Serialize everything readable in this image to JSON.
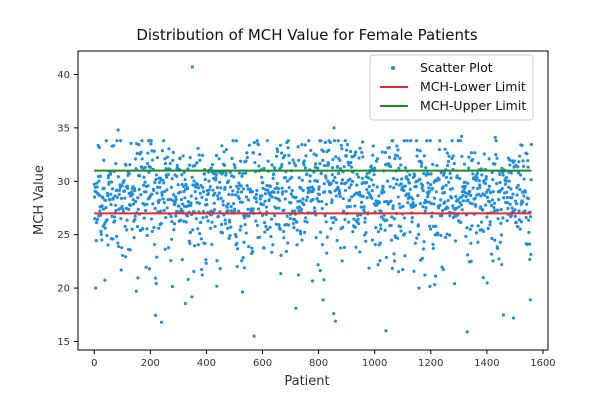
{
  "chart_data": {
    "type": "scatter",
    "title": "Distribution of MCH Value for Female Patients",
    "xlabel": "Patient",
    "ylabel": "MCH Value",
    "xlim": [
      -58,
      1618
    ],
    "ylim": [
      14.2,
      42.2
    ],
    "xticks": [
      0,
      200,
      400,
      600,
      800,
      1000,
      1200,
      1400,
      1600
    ],
    "yticks": [
      15,
      20,
      25,
      30,
      35,
      40
    ],
    "grid": false,
    "legend_position": "top-right",
    "series": [
      {
        "name": "Scatter Plot",
        "kind": "scatter",
        "color": "#1f8fde",
        "n_points": 1560,
        "x_range": [
          0,
          1559
        ]
      },
      {
        "name": "MCH-Lower Limit",
        "kind": "hline",
        "color": "#e8282a",
        "y": 27
      },
      {
        "name": "MCH-Upper Limit",
        "kind": "hline",
        "color": "#1e8a1e",
        "y": 31
      }
    ],
    "notable_points": [
      {
        "x": 350,
        "y": 40.7
      },
      {
        "x": 85,
        "y": 34.8
      },
      {
        "x": 855,
        "y": 35.0
      },
      {
        "x": 1310,
        "y": 34.2
      },
      {
        "x": 1430,
        "y": 34.1
      },
      {
        "x": 570,
        "y": 15.5
      },
      {
        "x": 1330,
        "y": 15.9
      },
      {
        "x": 1040,
        "y": 16.0
      },
      {
        "x": 240,
        "y": 16.8
      },
      {
        "x": 860,
        "y": 16.9
      },
      {
        "x": 1555,
        "y": 18.9
      },
      {
        "x": 5,
        "y": 20.0
      },
      {
        "x": 150,
        "y": 19.7
      }
    ]
  }
}
